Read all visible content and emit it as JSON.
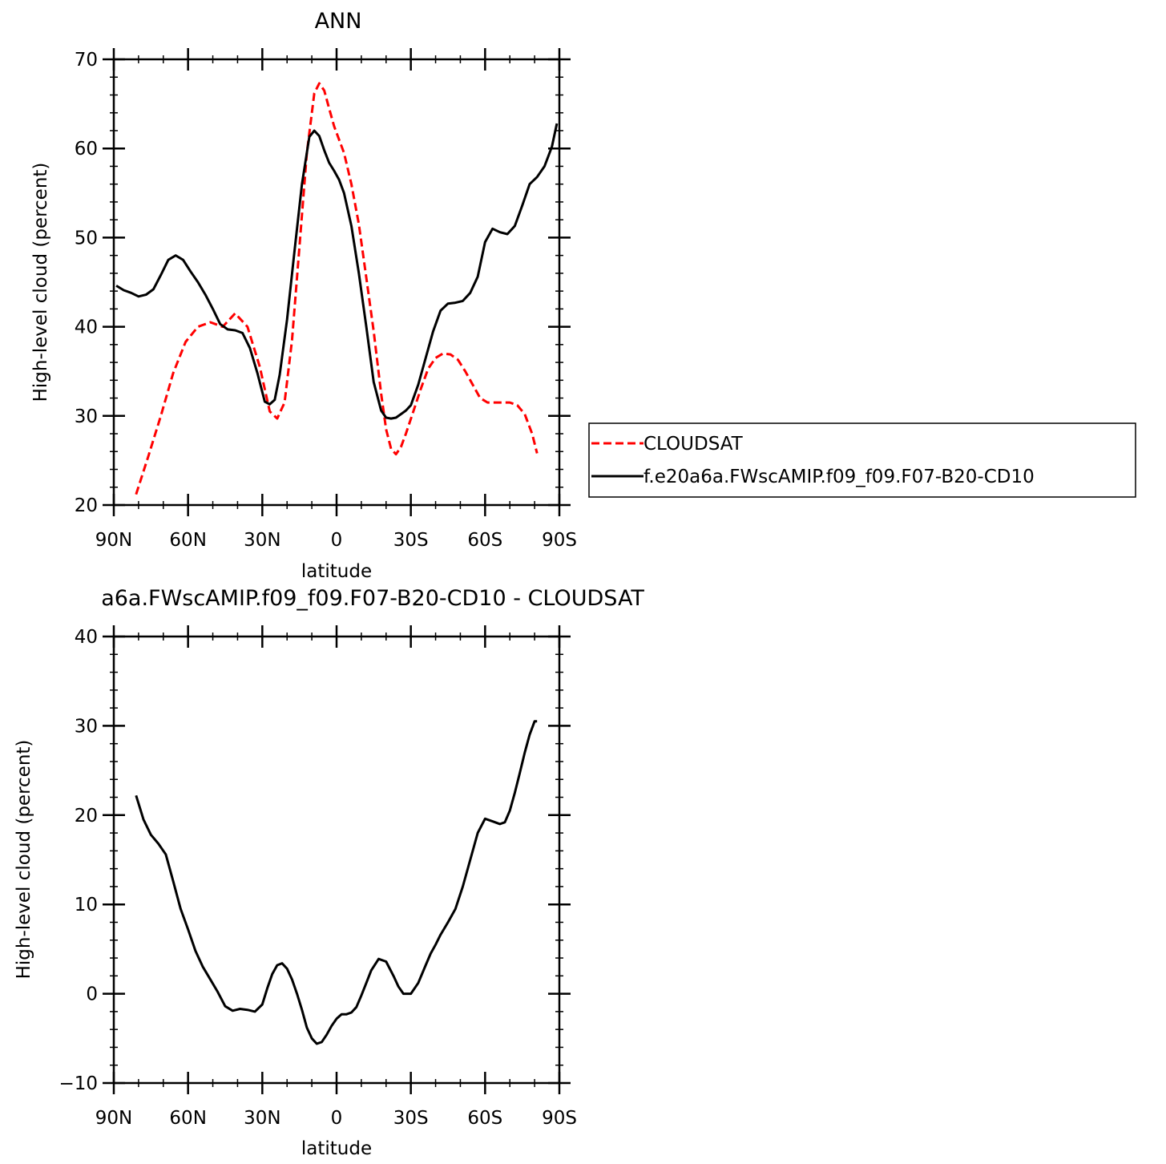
{
  "chart_data": [
    {
      "type": "line",
      "title": "ANN",
      "xlabel": "latitude",
      "ylabel": "High-level cloud (percent)",
      "xlim": [
        90,
        -90
      ],
      "ylim": [
        20,
        70
      ],
      "x_ticks": [
        {
          "value": 90,
          "label": "90N"
        },
        {
          "value": 60,
          "label": "60N"
        },
        {
          "value": 30,
          "label": "30N"
        },
        {
          "value": 0,
          "label": "0"
        },
        {
          "value": -30,
          "label": "30S"
        },
        {
          "value": -60,
          "label": "60S"
        },
        {
          "value": -90,
          "label": "90S"
        }
      ],
      "y_ticks": [
        {
          "value": 20,
          "label": "20"
        },
        {
          "value": 30,
          "label": "30"
        },
        {
          "value": 40,
          "label": "40"
        },
        {
          "value": 50,
          "label": "50"
        },
        {
          "value": 60,
          "label": "60"
        },
        {
          "value": 70,
          "label": "70"
        }
      ],
      "legend": "right",
      "series": [
        {
          "name": "CLOUDSAT",
          "color": "#ff0000",
          "dash": "dashed",
          "x": [
            81,
            76,
            71,
            66,
            61,
            56,
            51,
            46,
            41,
            36,
            31,
            27,
            24,
            21,
            18,
            15,
            12,
            9,
            7,
            5,
            3,
            1,
            -1,
            -3,
            -6,
            -9,
            -12,
            -15,
            -18,
            -20,
            -22,
            -24,
            -26,
            -28,
            -31,
            -34,
            -37,
            -40,
            -43,
            -46,
            -49,
            -52,
            -55,
            -58,
            -61,
            -64,
            -67,
            -70,
            -73,
            -76,
            -79,
            -81
          ],
          "y": [
            21.2,
            25.5,
            30.0,
            34.8,
            38.3,
            40.0,
            40.5,
            40.0,
            41.5,
            40.0,
            35.5,
            30.5,
            29.7,
            31.5,
            38.5,
            49.0,
            59.5,
            66.2,
            67.3,
            66.5,
            64.5,
            62.5,
            61.0,
            59.5,
            56.0,
            51.5,
            45.5,
            39.5,
            32.5,
            28.5,
            26.3,
            25.7,
            26.5,
            28.0,
            30.5,
            33.0,
            35.3,
            36.5,
            37.0,
            36.9,
            36.3,
            35.0,
            33.5,
            32.0,
            31.5,
            31.5,
            31.5,
            31.5,
            31.2,
            30.2,
            28.0,
            25.8
          ]
        },
        {
          "name": "f.e20a6a.FWscAMIP.f09_f09.F07-B20-CD10",
          "color": "#000000",
          "dash": "solid",
          "x": [
            89,
            86,
            83,
            80,
            77,
            74,
            71,
            68,
            65,
            62,
            59,
            56,
            53,
            50,
            47,
            44,
            41,
            38,
            35,
            32,
            29,
            27,
            25,
            23,
            20,
            17,
            14,
            11,
            9,
            7,
            5,
            3,
            1,
            -1,
            -3,
            -6,
            -9,
            -12,
            -15,
            -18,
            -20,
            -22,
            -24,
            -26,
            -28,
            -30,
            -33,
            -36,
            -39,
            -42,
            -45,
            -48,
            -51,
            -54,
            -57,
            -60,
            -63,
            -66,
            -69,
            -72,
            -75,
            -78,
            -81,
            -84,
            -87,
            -89
          ],
          "y": [
            44.6,
            44.1,
            43.8,
            43.4,
            43.6,
            44.2,
            45.8,
            47.5,
            48.0,
            47.5,
            46.2,
            45.0,
            43.6,
            42.0,
            40.3,
            39.7,
            39.6,
            39.3,
            37.6,
            34.8,
            31.6,
            31.3,
            31.8,
            34.6,
            40.8,
            48.5,
            56.0,
            61.3,
            62.0,
            61.4,
            59.8,
            58.4,
            57.5,
            56.5,
            55.0,
            51.3,
            46.0,
            40.0,
            33.8,
            30.6,
            29.8,
            29.7,
            29.8,
            30.2,
            30.6,
            31.2,
            33.5,
            36.5,
            39.5,
            41.8,
            42.6,
            42.7,
            42.9,
            43.8,
            45.6,
            49.5,
            51.0,
            50.6,
            50.4,
            51.3,
            53.6,
            56.0,
            56.8,
            58.0,
            60.2,
            62.8
          ]
        }
      ]
    },
    {
      "type": "line",
      "title": "a6a.FWscAMIP.f09_f09.F07-B20-CD10 - CLOUDSAT",
      "xlabel": "latitude",
      "ylabel": "High-level cloud (percent)",
      "xlim": [
        90,
        -90
      ],
      "ylim": [
        -10,
        40
      ],
      "x_ticks": [
        {
          "value": 90,
          "label": "90N"
        },
        {
          "value": 60,
          "label": "60N"
        },
        {
          "value": 30,
          "label": "30N"
        },
        {
          "value": 0,
          "label": "0"
        },
        {
          "value": -30,
          "label": "30S"
        },
        {
          "value": -60,
          "label": "60S"
        },
        {
          "value": -90,
          "label": "90S"
        }
      ],
      "y_ticks": [
        {
          "value": -10,
          "label": "−10"
        },
        {
          "value": 0,
          "label": "0"
        },
        {
          "value": 10,
          "label": "10"
        },
        {
          "value": 20,
          "label": "20"
        },
        {
          "value": 30,
          "label": "30"
        },
        {
          "value": 40,
          "label": "40"
        }
      ],
      "legend": "none",
      "series": [
        {
          "color": "#000000",
          "dash": "solid",
          "x": [
            81,
            78,
            75,
            72,
            69,
            66,
            63,
            60,
            57,
            54,
            51,
            48,
            45,
            42,
            39,
            36,
            33,
            30,
            28,
            26,
            24,
            22,
            20,
            18,
            16,
            14,
            12,
            10,
            8,
            6,
            4,
            2,
            0,
            -2,
            -4,
            -6,
            -8,
            -10,
            -12,
            -14,
            -17,
            -20,
            -23,
            -25,
            -27,
            -30,
            -33,
            -36,
            -38,
            -40,
            -42,
            -45,
            -48,
            -51,
            -54,
            -57,
            -60,
            -63,
            -66,
            -68,
            -70,
            -72,
            -74,
            -76,
            -78,
            -80,
            -81
          ],
          "y": [
            22.2,
            19.5,
            17.8,
            16.8,
            15.6,
            12.6,
            9.5,
            7.2,
            4.8,
            3.0,
            1.6,
            0.2,
            -1.4,
            -1.9,
            -1.7,
            -1.8,
            -2.0,
            -1.2,
            0.6,
            2.2,
            3.2,
            3.4,
            2.8,
            1.6,
            0.0,
            -1.8,
            -3.8,
            -5.0,
            -5.6,
            -5.4,
            -4.6,
            -3.6,
            -2.8,
            -2.3,
            -2.3,
            -2.1,
            -1.5,
            -0.2,
            1.2,
            2.6,
            3.9,
            3.6,
            2.0,
            0.8,
            0.0,
            0.0,
            1.2,
            3.2,
            4.5,
            5.5,
            6.6,
            8.0,
            9.5,
            12.0,
            15.0,
            18.0,
            19.6,
            19.3,
            19.0,
            19.2,
            20.5,
            22.5,
            24.7,
            27.0,
            29.0,
            30.5,
            30.5
          ]
        }
      ]
    }
  ]
}
